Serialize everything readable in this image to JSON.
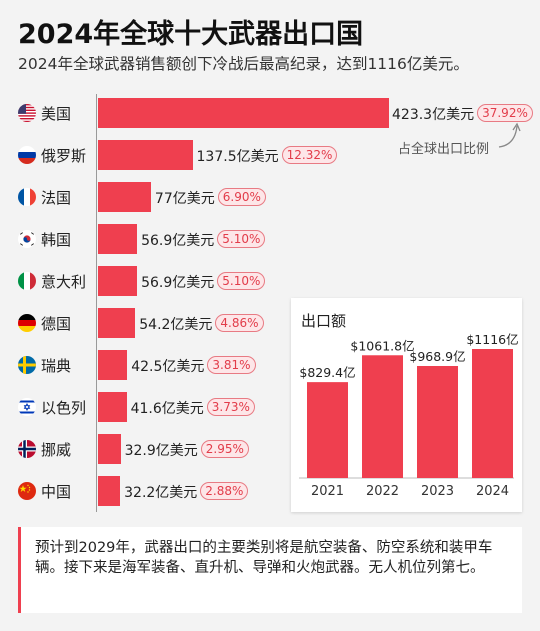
{
  "title": "2024年全球十大武器出口国",
  "subtitle": "2024年全球武器销售额创下冷战后最高纪录，达到1116亿美元。",
  "share_note": "占全球出口比例",
  "accent_color": "#ef3f4f",
  "chart_data": [
    {
      "type": "bar",
      "orientation": "horizontal",
      "unit": "亿美元",
      "categories": [
        "美国",
        "俄罗斯",
        "法国",
        "韩国",
        "意大利",
        "德国",
        "瑞典",
        "以色列",
        "挪威",
        "中国"
      ],
      "values": [
        423.3,
        137.5,
        77,
        56.9,
        56.9,
        54.2,
        42.5,
        41.6,
        32.9,
        32.2
      ],
      "value_labels": [
        "423.3亿美元",
        "137.5亿美元",
        "77亿美元",
        "56.9亿美元",
        "56.9亿美元",
        "54.2亿美元",
        "42.5亿美元",
        "41.6亿美元",
        "32.9亿美元",
        "32.2亿美元"
      ],
      "share_labels": [
        "37.92%",
        "12.32%",
        "6.90%",
        "5.10%",
        "5.10%",
        "4.86%",
        "3.81%",
        "3.73%",
        "2.95%",
        "2.88%"
      ],
      "flags": [
        "us-flag-icon",
        "russia-flag-icon",
        "france-flag-icon",
        "korea-flag-icon",
        "italy-flag-icon",
        "germany-flag-icon",
        "sweden-flag-icon",
        "israel-flag-icon",
        "norway-flag-icon",
        "china-flag-icon"
      ]
    },
    {
      "type": "bar",
      "title": "出口额",
      "categories": [
        "2021",
        "2022",
        "2023",
        "2024"
      ],
      "values": [
        829.4,
        1061.8,
        968.9,
        1116
      ],
      "value_labels": [
        "$829.4亿",
        "$1061.8亿",
        "$968.9亿",
        "$1116亿"
      ]
    }
  ],
  "footnote": "预计到2029年，武器出口的主要类别将是航空装备、防空系统和装甲车辆。接下来是海军装备、直升机、导弹和火炮武器。无人机位列第七。"
}
